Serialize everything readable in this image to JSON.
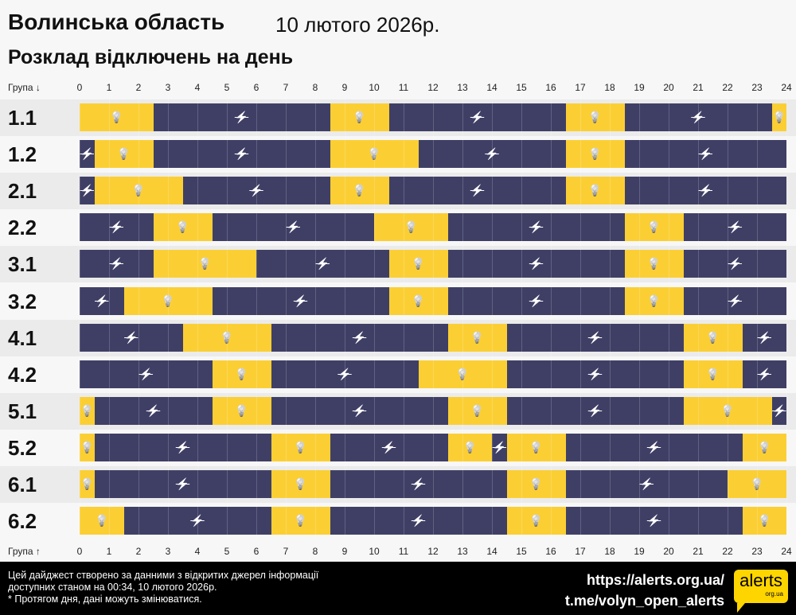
{
  "header": {
    "title": "Волинська область",
    "date": "10 лютого 2026р.",
    "subtitle": "Розклад відключень на день"
  },
  "axis": {
    "top_label": "Група ↓",
    "bottom_label": "Група ↑",
    "ticks": [
      "0",
      "1",
      "2",
      "3",
      "4",
      "5",
      "6",
      "7",
      "8",
      "9",
      "10",
      "11",
      "12",
      "13",
      "14",
      "15",
      "16",
      "17",
      "18",
      "19",
      "20",
      "21",
      "22",
      "23",
      "24"
    ]
  },
  "chart_data": {
    "type": "timeline",
    "x_unit": "hour",
    "xlim": [
      0,
      24
    ],
    "colors": {
      "on": "#fbcf34",
      "off": "#3f3f66"
    },
    "icons": {
      "on": "lightbulb-icon",
      "off": "power-off-icon"
    },
    "groups": [
      {
        "name": "1.1",
        "segments": [
          [
            "on",
            0,
            2.5
          ],
          [
            "off",
            2.5,
            8.5
          ],
          [
            "on",
            8.5,
            10.5
          ],
          [
            "off",
            10.5,
            16.5
          ],
          [
            "on",
            16.5,
            18.5
          ],
          [
            "off",
            18.5,
            23.5
          ],
          [
            "on",
            23.5,
            24
          ]
        ]
      },
      {
        "name": "1.2",
        "segments": [
          [
            "off",
            0,
            0.5
          ],
          [
            "on",
            0.5,
            2.5
          ],
          [
            "off",
            2.5,
            8.5
          ],
          [
            "on",
            8.5,
            11.5
          ],
          [
            "off",
            11.5,
            16.5
          ],
          [
            "on",
            16.5,
            18.5
          ],
          [
            "off",
            18.5,
            24
          ]
        ]
      },
      {
        "name": "2.1",
        "segments": [
          [
            "off",
            0,
            0.5
          ],
          [
            "on",
            0.5,
            3.5
          ],
          [
            "off",
            3.5,
            8.5
          ],
          [
            "on",
            8.5,
            10.5
          ],
          [
            "off",
            10.5,
            16.5
          ],
          [
            "on",
            16.5,
            18.5
          ],
          [
            "off",
            18.5,
            24
          ]
        ]
      },
      {
        "name": "2.2",
        "segments": [
          [
            "off",
            0,
            2.5
          ],
          [
            "on",
            2.5,
            4.5
          ],
          [
            "off",
            4.5,
            10
          ],
          [
            "on",
            10,
            12.5
          ],
          [
            "off",
            12.5,
            18.5
          ],
          [
            "on",
            18.5,
            20.5
          ],
          [
            "off",
            20.5,
            24
          ]
        ]
      },
      {
        "name": "3.1",
        "segments": [
          [
            "off",
            0,
            2.5
          ],
          [
            "on",
            2.5,
            6
          ],
          [
            "off",
            6,
            10.5
          ],
          [
            "on",
            10.5,
            12.5
          ],
          [
            "off",
            12.5,
            18.5
          ],
          [
            "on",
            18.5,
            20.5
          ],
          [
            "off",
            20.5,
            24
          ]
        ]
      },
      {
        "name": "3.2",
        "segments": [
          [
            "off",
            0,
            1.5
          ],
          [
            "on",
            1.5,
            4.5
          ],
          [
            "off",
            4.5,
            10.5
          ],
          [
            "on",
            10.5,
            12.5
          ],
          [
            "off",
            12.5,
            18.5
          ],
          [
            "on",
            18.5,
            20.5
          ],
          [
            "off",
            20.5,
            24
          ]
        ]
      },
      {
        "name": "4.1",
        "segments": [
          [
            "off",
            0,
            3.5
          ],
          [
            "on",
            3.5,
            6.5
          ],
          [
            "off",
            6.5,
            12.5
          ],
          [
            "on",
            12.5,
            14.5
          ],
          [
            "off",
            14.5,
            20.5
          ],
          [
            "on",
            20.5,
            22.5
          ],
          [
            "off",
            22.5,
            24
          ]
        ]
      },
      {
        "name": "4.2",
        "segments": [
          [
            "off",
            0,
            4.5
          ],
          [
            "on",
            4.5,
            6.5
          ],
          [
            "off",
            6.5,
            11.5
          ],
          [
            "on",
            11.5,
            14.5
          ],
          [
            "off",
            14.5,
            20.5
          ],
          [
            "on",
            20.5,
            22.5
          ],
          [
            "off",
            22.5,
            24
          ]
        ]
      },
      {
        "name": "5.1",
        "segments": [
          [
            "on",
            0,
            0.5
          ],
          [
            "off",
            0.5,
            4.5
          ],
          [
            "on",
            4.5,
            6.5
          ],
          [
            "off",
            6.5,
            12.5
          ],
          [
            "on",
            12.5,
            14.5
          ],
          [
            "off",
            14.5,
            20.5
          ],
          [
            "on",
            20.5,
            23.5
          ],
          [
            "off",
            23.5,
            24
          ]
        ]
      },
      {
        "name": "5.2",
        "segments": [
          [
            "on",
            0,
            0.5
          ],
          [
            "off",
            0.5,
            6.5
          ],
          [
            "on",
            6.5,
            8.5
          ],
          [
            "off",
            8.5,
            12.5
          ],
          [
            "on",
            12.5,
            14
          ],
          [
            "off",
            14,
            14.5
          ],
          [
            "on",
            14.5,
            16.5
          ],
          [
            "off",
            16.5,
            22.5
          ],
          [
            "on",
            22.5,
            24
          ]
        ]
      },
      {
        "name": "6.1",
        "segments": [
          [
            "on",
            0,
            0.5
          ],
          [
            "off",
            0.5,
            6.5
          ],
          [
            "on",
            6.5,
            8.5
          ],
          [
            "off",
            8.5,
            14.5
          ],
          [
            "on",
            14.5,
            16.5
          ],
          [
            "off",
            16.5,
            22
          ],
          [
            "on",
            22,
            24
          ]
        ]
      },
      {
        "name": "6.2",
        "segments": [
          [
            "on",
            0,
            1.5
          ],
          [
            "off",
            1.5,
            6.5
          ],
          [
            "on",
            6.5,
            8.5
          ],
          [
            "off",
            8.5,
            14.5
          ],
          [
            "on",
            14.5,
            16.5
          ],
          [
            "off",
            16.5,
            22.5
          ],
          [
            "on",
            22.5,
            24
          ]
        ]
      }
    ]
  },
  "footer": {
    "note_line1": "Цей дайджест створено за данними з відкритих джерел інформації",
    "note_line2": "доступних станом на 00:34, 10 лютого 2026р.",
    "note_line3": "* Протягом дня, дані можуть змінюватися.",
    "link1": "https://alerts.org.ua/",
    "link2": "t.me/volyn_open_alerts",
    "logo_text": "alerts",
    "logo_sub": "org.ua"
  }
}
